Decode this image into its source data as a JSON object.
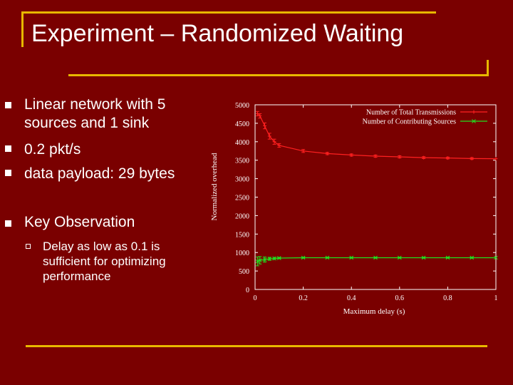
{
  "slide": {
    "title": "Experiment – Randomized Waiting",
    "bullets": [
      "Linear network with 5 sources and 1 sink",
      "0.2 pkt/s",
      "data payload: 29 bytes",
      "Key Observation"
    ],
    "sub_bullets": [
      "Delay as low as 0.1 is sufficient for optimizing performance"
    ],
    "colors": {
      "background": "#7a0000",
      "accent": "#e8b800",
      "series_total": "#ff2020",
      "series_contributing": "#20e020"
    }
  },
  "chart_data": {
    "type": "line",
    "title": "",
    "xlabel": "Maximum delay (s)",
    "ylabel": "Normalized overhead",
    "xlim": [
      0,
      1
    ],
    "ylim": [
      0,
      5000
    ],
    "xticks": [
      "0",
      "0.2",
      "0.4",
      "0.6",
      "0.8",
      "1"
    ],
    "yticks": [
      "0",
      "500",
      "1000",
      "1500",
      "2000",
      "2500",
      "3000",
      "3500",
      "4000",
      "4500",
      "5000"
    ],
    "legend_position": "top-right",
    "grid": false,
    "series": [
      {
        "name": "Number of Total Transmissions",
        "x": [
          0.01,
          0.02,
          0.04,
          0.06,
          0.08,
          0.1,
          0.2,
          0.3,
          0.4,
          0.5,
          0.6,
          0.7,
          0.8,
          0.9,
          1.0
        ],
        "y": [
          4760,
          4700,
          4430,
          4150,
          4000,
          3900,
          3750,
          3680,
          3640,
          3610,
          3590,
          3570,
          3560,
          3545,
          3540
        ],
        "err": [
          60,
          60,
          80,
          80,
          70,
          50,
          40,
          30,
          30,
          30,
          30,
          25,
          25,
          25,
          0
        ]
      },
      {
        "name": "Number of Contributing Sources",
        "x": [
          0.01,
          0.02,
          0.04,
          0.06,
          0.08,
          0.1,
          0.2,
          0.3,
          0.4,
          0.5,
          0.6,
          0.7,
          0.8,
          0.9,
          1.0
        ],
        "y": [
          760,
          790,
          810,
          830,
          840,
          850,
          860,
          860,
          860,
          860,
          860,
          860,
          860,
          860,
          860
        ],
        "err": [
          120,
          100,
          70,
          40,
          30,
          20,
          15,
          15,
          15,
          15,
          15,
          15,
          15,
          15,
          0
        ]
      }
    ]
  }
}
